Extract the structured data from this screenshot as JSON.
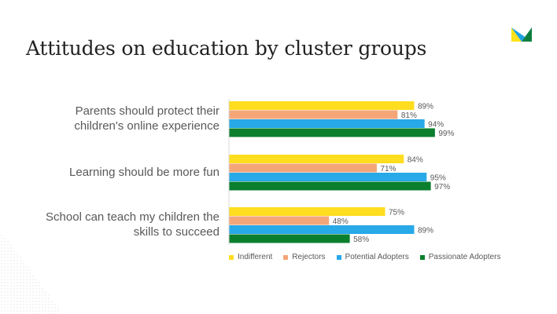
{
  "slide": {
    "title": "Attitudes on education by cluster groups"
  },
  "logo": {
    "icon": "brand-logo-icon",
    "colors": [
      "#FFE21A",
      "#1DA1E2",
      "#0E7F3F"
    ]
  },
  "chart_data": {
    "type": "bar",
    "orientation": "horizontal",
    "title": "Attitudes on education by cluster groups",
    "categories": [
      "Parents should protect their children's online experience",
      "Learning should be more fun",
      "School can teach my children the skills to succeed"
    ],
    "category_lines": [
      [
        "Parents should protect their",
        "children's online experience"
      ],
      [
        "Learning should be more fun"
      ],
      [
        "School can teach my children the",
        "skills to succeed"
      ]
    ],
    "series": [
      {
        "name": "Indifferent",
        "color": "#FFDD1F",
        "values": [
          89,
          84,
          75
        ],
        "labels": [
          "89%",
          "84%",
          "75%"
        ]
      },
      {
        "name": "Rejectors",
        "color": "#F4A679",
        "values": [
          81,
          71,
          48
        ],
        "labels": [
          "81%",
          "71%",
          "48%"
        ]
      },
      {
        "name": "Potential Adopters",
        "color": "#28A9E8",
        "values": [
          94,
          95,
          89
        ],
        "labels": [
          "94%",
          "95%",
          "89%"
        ]
      },
      {
        "name": "Passionate Adopters",
        "color": "#0A7F2E",
        "values": [
          99,
          97,
          58
        ],
        "labels": [
          "99%",
          "97%",
          "58%"
        ]
      }
    ],
    "xlim": [
      0,
      100
    ],
    "value_unit": "%",
    "legend_position": "bottom",
    "grid": false
  }
}
